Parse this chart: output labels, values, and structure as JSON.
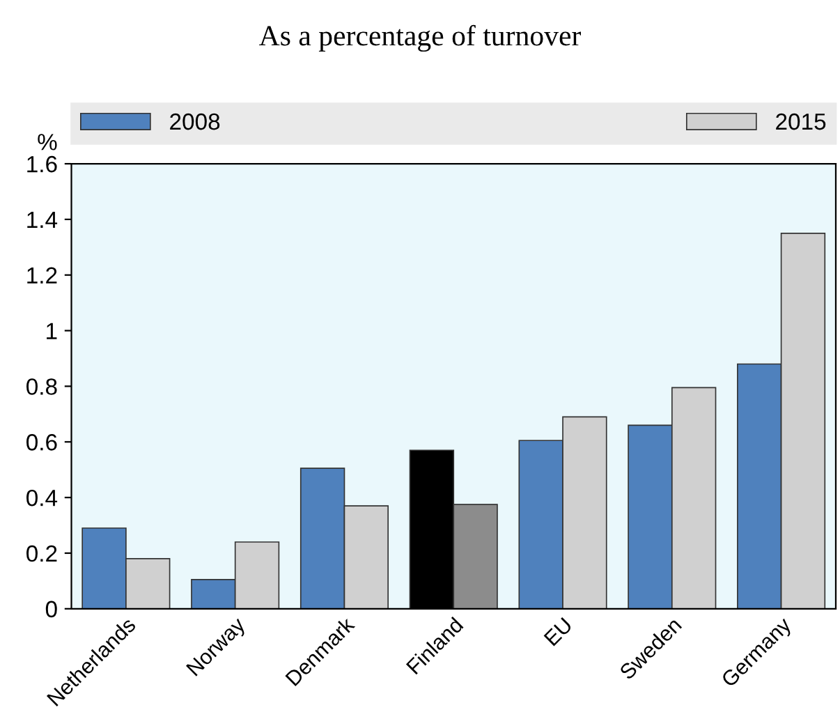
{
  "chart_data": {
    "type": "bar",
    "title": "As a percentage of turnover",
    "ylabel": "%",
    "categories": [
      "Netherlands",
      "Norway",
      "Denmark",
      "Finland",
      "EU",
      "Sweden",
      "Germany"
    ],
    "series": [
      {
        "name": "2008",
        "color": "#4f81bd",
        "colors": [
          "#4f81bd",
          "#4f81bd",
          "#4f81bd",
          "#000000",
          "#4f81bd",
          "#4f81bd",
          "#4f81bd"
        ],
        "values": [
          0.29,
          0.105,
          0.505,
          0.57,
          0.605,
          0.66,
          0.88
        ]
      },
      {
        "name": "2015",
        "color": "#d0d0d0",
        "colors": [
          "#d0d0d0",
          "#d0d0d0",
          "#d0d0d0",
          "#8c8c8c",
          "#d0d0d0",
          "#d0d0d0",
          "#d0d0d0"
        ],
        "values": [
          0.18,
          0.24,
          0.37,
          0.375,
          0.69,
          0.795,
          1.35
        ]
      }
    ],
    "ylim": [
      0,
      1.6
    ],
    "yticks": [
      0,
      0.2,
      0.4,
      0.6,
      0.8,
      1,
      1.2,
      1.4,
      1.6
    ],
    "grid": false,
    "legend": "top"
  }
}
